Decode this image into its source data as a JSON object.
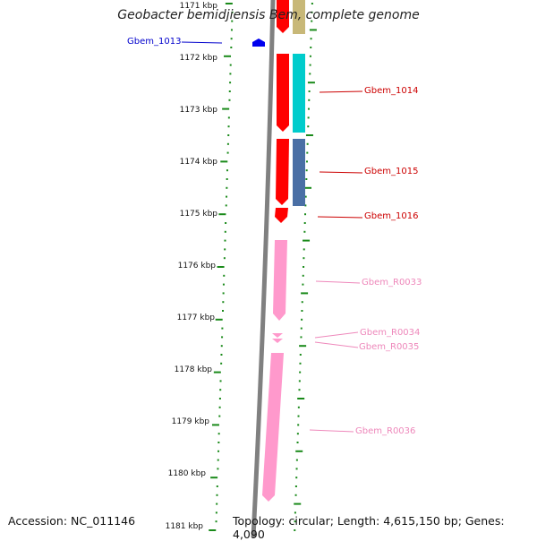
{
  "title": "Geobacter bemidjiensis Bem, complete genome",
  "footer": {
    "accession": "Accession: NC_011146",
    "topology": "Topology: circular; Length: 4,615,150 bp; Genes: 4,090"
  },
  "ticks": [
    "1171 kbp",
    "1172 kbp",
    "1173 kbp",
    "1174 kbp",
    "1175 kbp",
    "1176 kbp",
    "1177 kbp",
    "1178 kbp",
    "1179 kbp",
    "1180 kbp",
    "1181 kbp"
  ],
  "genes": [
    {
      "name": "Gbem_1013",
      "color": "#0000cc"
    },
    {
      "name": "Gbem_1014",
      "color": "#cc0000"
    },
    {
      "name": "Gbem_1015",
      "color": "#cc0000"
    },
    {
      "name": "Gbem_1016",
      "color": "#cc0000"
    },
    {
      "name": "Gbem_R0033",
      "color": "#ee88bb"
    },
    {
      "name": "Gbem_R0034",
      "color": "#ee88bb"
    },
    {
      "name": "Gbem_R0035",
      "color": "#ee88bb"
    },
    {
      "name": "Gbem_R0036",
      "color": "#ee88bb"
    }
  ],
  "colors": {
    "backbone": "#808080",
    "tick_green": "#1a8a1a",
    "cds_red": "#ff0000",
    "rna_pink": "#ff99cc",
    "cog_cyan": "#00cccc",
    "cog_steel": "#4a6fa5",
    "cog_tan": "#c8b878",
    "gene_blue": "#0000ee"
  }
}
